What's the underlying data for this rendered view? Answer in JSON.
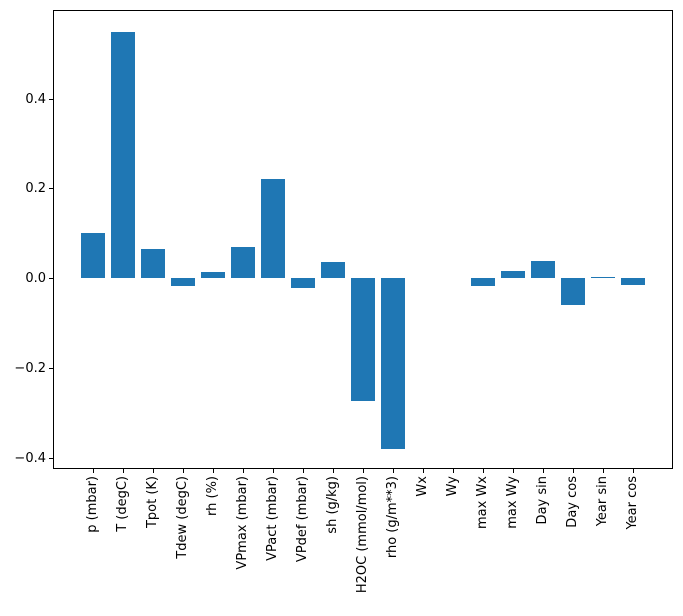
{
  "figure": {
    "background_color": "#ffffff",
    "plot_border_color": "#000000"
  },
  "chart_data": {
    "type": "bar",
    "title": "",
    "xlabel": "",
    "ylabel": "",
    "bar_color": "#1f77b4",
    "grid": false,
    "legend": "none",
    "categories": [
      "p (mbar)",
      "T (degC)",
      "Tpot (K)",
      "Tdew (degC)",
      "rh (%)",
      "VPmax (mbar)",
      "VPact (mbar)",
      "VPdef (mbar)",
      "sh (g/kg)",
      "H2OC (mmol/mol)",
      "rho (g/m**3)",
      "Wx",
      "Wy",
      "max Wx",
      "max Wy",
      "Day sin",
      "Day cos",
      "Year sin",
      "Year cos"
    ],
    "values": [
      0.1,
      0.547,
      0.066,
      -0.017,
      0.014,
      0.07,
      0.221,
      -0.022,
      0.036,
      -0.273,
      -0.38,
      0.0,
      0.0,
      -0.017,
      0.017,
      0.038,
      -0.059,
      0.004,
      -0.015
    ],
    "ylim": [
      -0.424,
      0.597
    ],
    "yticks": {
      "values": [
        0.4,
        0.2,
        0.0,
        -0.2,
        -0.4
      ],
      "labels": [
        "0.4",
        "0.2",
        "0.0",
        "−0.2",
        "−0.4"
      ]
    }
  }
}
